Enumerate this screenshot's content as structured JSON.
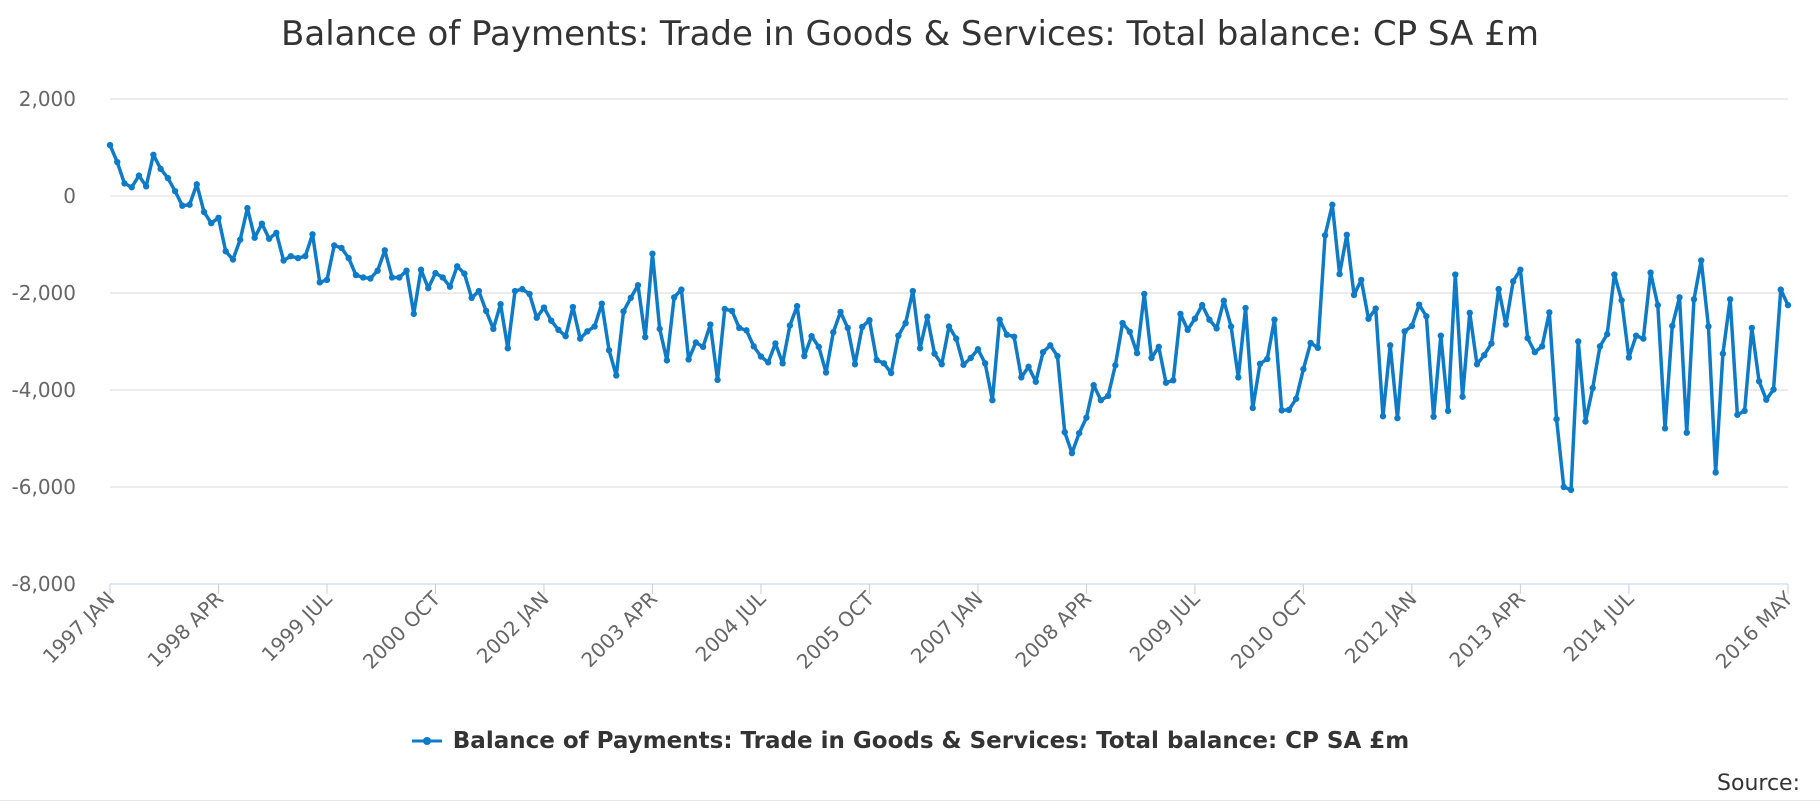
{
  "chart_data": {
    "type": "line",
    "title": "Balance of Payments: Trade in Goods & Services: Total balance: CP SA £m",
    "xlabel": "",
    "ylabel": "",
    "ylim": [
      -8000,
      2000
    ],
    "y_ticks": [
      2000,
      0,
      -2000,
      -4000,
      -6000,
      -8000
    ],
    "y_tick_labels": [
      "2,000",
      "0",
      "-2,000",
      "-4,000",
      "-6,000",
      "-8,000"
    ],
    "x_tick_labels": [
      "1997 JAN",
      "1998 APR",
      "1999 JUL",
      "2000 OCT",
      "2002 JAN",
      "2003 APR",
      "2004 JUL",
      "2005 OCT",
      "2007 JAN",
      "2008 APR",
      "2009 JUL",
      "2010 OCT",
      "2012 JAN",
      "2013 APR",
      "2014 JUL",
      "2016 MAY"
    ],
    "x_start": "1997 JAN",
    "x_end": "2016 MAY",
    "grid": true,
    "legend": "bottom",
    "color": "#0f7bc6",
    "series": [
      {
        "name": "Balance of Payments: Trade in Goods & Services: Total balance: CP SA £m",
        "values": [
          1050,
          700,
          260,
          180,
          420,
          200,
          850,
          560,
          370,
          100,
          -200,
          -180,
          240,
          -330,
          -560,
          -450,
          -1140,
          -1310,
          -900,
          -250,
          -860,
          -570,
          -880,
          -760,
          -1330,
          -1240,
          -1280,
          -1240,
          -790,
          -1780,
          -1730,
          -1020,
          -1070,
          -1280,
          -1630,
          -1680,
          -1700,
          -1540,
          -1120,
          -1680,
          -1680,
          -1540,
          -2430,
          -1520,
          -1900,
          -1590,
          -1680,
          -1870,
          -1450,
          -1600,
          -2100,
          -1960,
          -2370,
          -2740,
          -2230,
          -3140,
          -1960,
          -1920,
          -2020,
          -2510,
          -2300,
          -2570,
          -2760,
          -2890,
          -2290,
          -2940,
          -2790,
          -2690,
          -2220,
          -3180,
          -3700,
          -2380,
          -2100,
          -1840,
          -2910,
          -1190,
          -2740,
          -3390,
          -2090,
          -1930,
          -3370,
          -3020,
          -3110,
          -2650,
          -3790,
          -2330,
          -2370,
          -2720,
          -2770,
          -3100,
          -3310,
          -3430,
          -3040,
          -3450,
          -2670,
          -2270,
          -3300,
          -2890,
          -3110,
          -3640,
          -2810,
          -2390,
          -2720,
          -3470,
          -2700,
          -2560,
          -3380,
          -3450,
          -3650,
          -2880,
          -2620,
          -1960,
          -3140,
          -2490,
          -3250,
          -3470,
          -2690,
          -2940,
          -3480,
          -3340,
          -3160,
          -3450,
          -4210,
          -2550,
          -2860,
          -2900,
          -3740,
          -3520,
          -3830,
          -3220,
          -3080,
          -3300,
          -4870,
          -5300,
          -4890,
          -4570,
          -3900,
          -4210,
          -4120,
          -3490,
          -2620,
          -2800,
          -3240,
          -2020,
          -3340,
          -3110,
          -3850,
          -3800,
          -2430,
          -2760,
          -2530,
          -2250,
          -2550,
          -2730,
          -2160,
          -2690,
          -3740,
          -2310,
          -4370,
          -3460,
          -3360,
          -2550,
          -4420,
          -4410,
          -4180,
          -3570,
          -3030,
          -3130,
          -810,
          -180,
          -1610,
          -800,
          -2040,
          -1730,
          -2530,
          -2320,
          -4540,
          -3080,
          -4580,
          -2790,
          -2680,
          -2240,
          -2480,
          -4550,
          -2880,
          -4430,
          -1620,
          -4140,
          -2410,
          -3470,
          -3280,
          -3040,
          -1920,
          -2650,
          -1760,
          -1520,
          -2930,
          -3220,
          -3100,
          -2400,
          -4600,
          -6000,
          -6060,
          -3000,
          -4650,
          -3960,
          -3100,
          -2850,
          -1620,
          -2150,
          -3330,
          -2880,
          -2940,
          -1580,
          -2250,
          -4790,
          -2680,
          -2090,
          -4880,
          -2130,
          -1330,
          -2690,
          -5700,
          -3250,
          -2130,
          -4510,
          -4430,
          -2720,
          -3820,
          -4200,
          -3990,
          -1930,
          -2250
        ]
      }
    ]
  },
  "legend": {
    "label": "Balance of Payments: Trade in Goods & Services: Total balance: CP SA £m"
  },
  "footer": {
    "source_label": "Source:"
  }
}
